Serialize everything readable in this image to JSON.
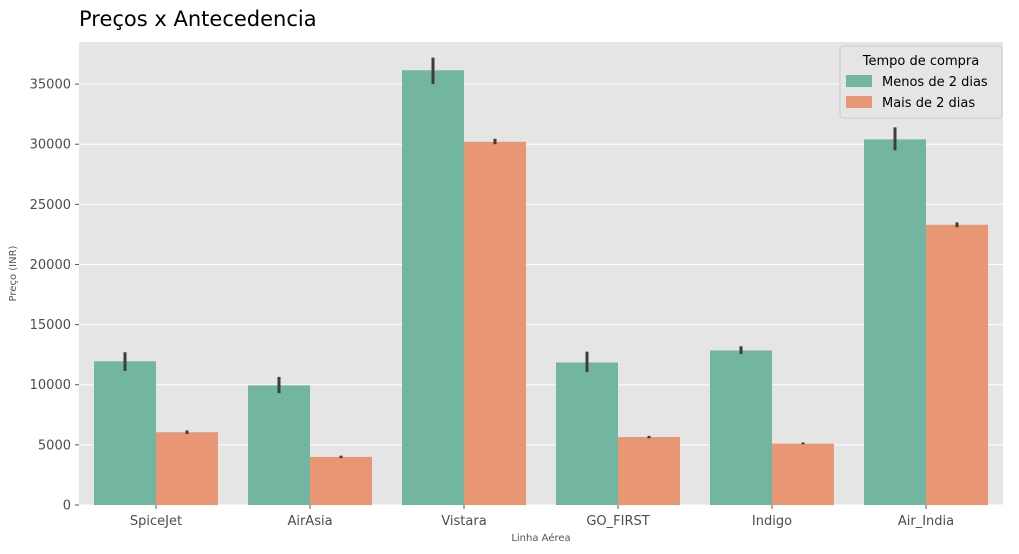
{
  "chart_data": {
    "type": "bar",
    "title": "Preços x Antecedencia",
    "xlabel": "Linha Aérea",
    "ylabel": "Preço (INR)",
    "categories": [
      "SpiceJet",
      "AirAsia",
      "Vistara",
      "GO_FIRST",
      "Indigo",
      "Air_India"
    ],
    "series": [
      {
        "name": "Menos de 2 dias",
        "color": "#72b6a1",
        "values": [
          11950,
          9950,
          36150,
          11850,
          12850,
          30400
        ],
        "error_low": [
          11150,
          9300,
          35000,
          11050,
          12550,
          29500
        ],
        "error_high": [
          12700,
          10650,
          37200,
          12750,
          13200,
          31400
        ]
      },
      {
        "name": "Mais de 2 dias",
        "color": "#e99675",
        "values": [
          6050,
          4000,
          30200,
          5650,
          5100,
          23300
        ],
        "error_low": [
          5900,
          3900,
          30000,
          5550,
          5050,
          23100
        ],
        "error_high": [
          6200,
          4100,
          30450,
          5750,
          5200,
          23500
        ]
      }
    ],
    "yticks": [
      "0",
      "5000",
      "10000",
      "15000",
      "20000",
      "25000",
      "30000",
      "35000"
    ],
    "ylim": [
      0,
      38500
    ],
    "grid": true,
    "legend": {
      "title": "Tempo de compra",
      "placement": "top-right"
    }
  }
}
